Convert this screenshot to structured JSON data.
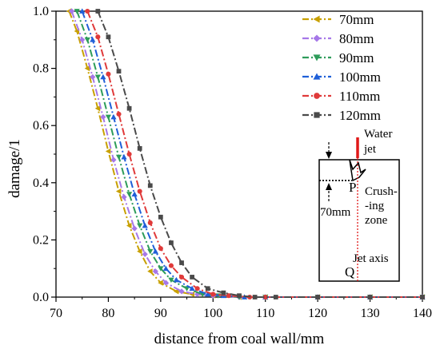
{
  "chart_data": {
    "type": "line",
    "xlabel": "distance from coal wall/mm",
    "ylabel": "damage/1",
    "xlim": [
      70,
      140
    ],
    "ylim": [
      0,
      1.0
    ],
    "x_ticks": [
      "70",
      "80",
      "90",
      "100",
      "110",
      "120",
      "130",
      "140"
    ],
    "y_ticks": [
      "0.0",
      "0.2",
      "0.4",
      "0.6",
      "0.8",
      "1.0"
    ],
    "grid": false,
    "legend_position": "top-right",
    "series": [
      {
        "name": "70mm",
        "color": "#c8a000",
        "marker": "triangle-left",
        "x": [
          72.5,
          74,
          76,
          78,
          80,
          82,
          84,
          86,
          88,
          90,
          93,
          96,
          100,
          105,
          110,
          120,
          130,
          140
        ],
        "y": [
          1.0,
          0.93,
          0.8,
          0.66,
          0.51,
          0.37,
          0.25,
          0.16,
          0.09,
          0.05,
          0.02,
          0.01,
          0.005,
          0.0,
          0.0,
          0.0,
          0.0,
          0.0
        ]
      },
      {
        "name": "80mm",
        "color": "#a678e8",
        "marker": "diamond",
        "x": [
          73,
          75,
          77,
          79,
          81,
          83,
          85,
          87,
          89,
          91,
          94,
          97,
          100,
          105,
          110,
          120,
          130,
          140
        ],
        "y": [
          1.0,
          0.9,
          0.77,
          0.63,
          0.48,
          0.35,
          0.24,
          0.15,
          0.09,
          0.05,
          0.02,
          0.01,
          0.005,
          0.0,
          0.0,
          0.0,
          0.0,
          0.0
        ]
      },
      {
        "name": "90mm",
        "color": "#2e9c5a",
        "marker": "triangle-down",
        "x": [
          74,
          76,
          78,
          80,
          82,
          84,
          86,
          88,
          90,
          92,
          95,
          98,
          101,
          105,
          110,
          120,
          130,
          140
        ],
        "y": [
          1.0,
          0.9,
          0.77,
          0.63,
          0.49,
          0.36,
          0.25,
          0.16,
          0.1,
          0.06,
          0.03,
          0.01,
          0.005,
          0.0,
          0.0,
          0.0,
          0.0,
          0.0
        ]
      },
      {
        "name": "100mm",
        "color": "#1f5fd8",
        "marker": "triangle-up",
        "x": [
          75,
          77,
          79,
          81,
          83,
          85,
          87,
          89,
          91,
          93,
          96,
          99,
          102,
          106,
          110,
          120,
          130,
          140
        ],
        "y": [
          1.0,
          0.9,
          0.77,
          0.63,
          0.49,
          0.36,
          0.25,
          0.16,
          0.1,
          0.06,
          0.03,
          0.01,
          0.005,
          0.0,
          0.0,
          0.0,
          0.0,
          0.0
        ]
      },
      {
        "name": "110mm",
        "color": "#e03a3a",
        "marker": "circle",
        "x": [
          76,
          78,
          80,
          82,
          84,
          86,
          88,
          90,
          92,
          94,
          97,
          100,
          103,
          107,
          110,
          120,
          130,
          140
        ],
        "y": [
          1.0,
          0.91,
          0.78,
          0.64,
          0.5,
          0.37,
          0.26,
          0.17,
          0.11,
          0.07,
          0.03,
          0.01,
          0.005,
          0.0,
          0.0,
          0.0,
          0.0,
          0.0
        ]
      },
      {
        "name": "120mm",
        "color": "#4a4a4a",
        "marker": "square",
        "x": [
          78,
          80,
          82,
          84,
          86,
          88,
          90,
          92,
          94,
          96,
          99,
          102,
          105,
          108,
          112,
          120,
          130,
          140
        ],
        "y": [
          1.0,
          0.91,
          0.79,
          0.66,
          0.52,
          0.39,
          0.28,
          0.19,
          0.12,
          0.07,
          0.03,
          0.015,
          0.005,
          0.0,
          0.0,
          0.0,
          0.0,
          0.0
        ]
      }
    ],
    "inset": {
      "water_jet_label": "Water\njet",
      "crushing_zone_label": "Crush-\n-ing\nzone",
      "point_p_label": "P",
      "point_q_label": "Q",
      "distance_label": "70mm",
      "jet_axis_label": "Jet axis"
    }
  }
}
